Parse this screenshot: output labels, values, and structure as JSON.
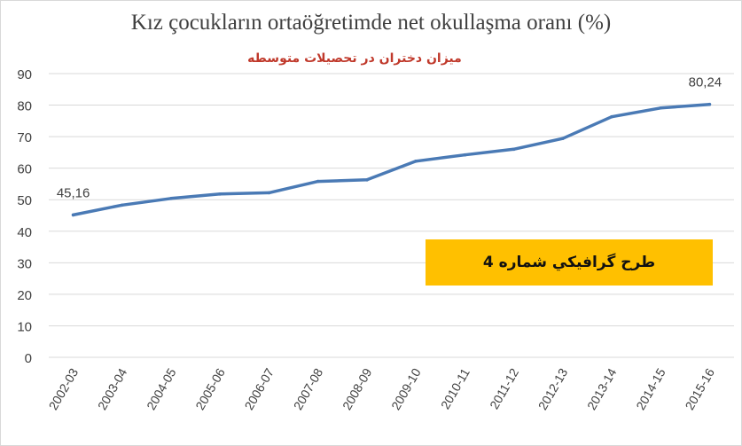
{
  "chart_data": {
    "type": "line",
    "title": "Kız çocukların ortaöğretimde net okullaşma oranı (%)",
    "subtitle": "میزان دختران در تحصیلات متوسطه",
    "categories": [
      "2002-03",
      "2003-04",
      "2004-05",
      "2005-06",
      "2006-07",
      "2007-08",
      "2008-09",
      "2009-10",
      "2010-11",
      "2011-12",
      "2012-13",
      "2013-14",
      "2014-15",
      "2015-16"
    ],
    "series": [
      {
        "values": [
          45.16,
          48.3,
          50.4,
          51.8,
          52.2,
          55.8,
          56.3,
          62.2,
          64.2,
          66.0,
          69.4,
          76.3,
          79.1,
          80.24
        ]
      }
    ],
    "data_labels": [
      "45,16",
      "80,24"
    ],
    "yticks": [
      "0",
      "10",
      "20",
      "30",
      "40",
      "50",
      "60",
      "70",
      "80",
      "90"
    ],
    "ylim": [
      0,
      90
    ],
    "grid": true,
    "line_color": "#4a7ab5",
    "annotation": "طرح گرافيكي شماره 4",
    "annotation_color": "#ffc000"
  }
}
